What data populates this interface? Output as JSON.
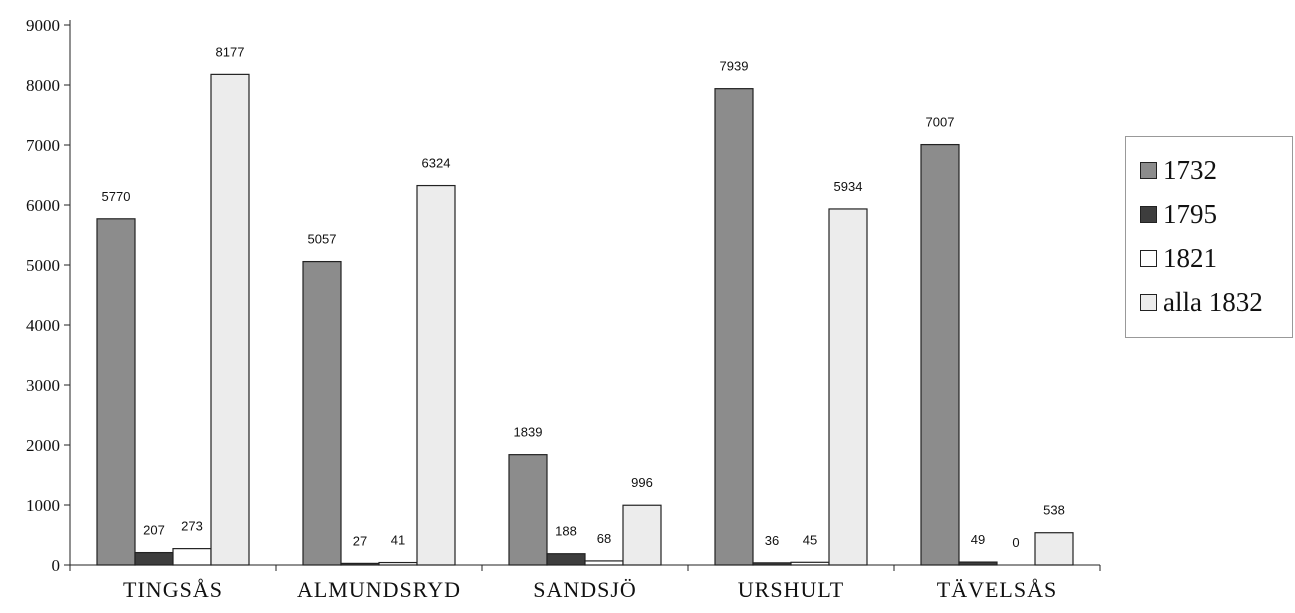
{
  "chart_data": {
    "type": "bar",
    "title": "",
    "xlabel": "",
    "ylabel": "",
    "ylim": [
      0,
      9000
    ],
    "yticks": [
      0,
      1000,
      2000,
      3000,
      4000,
      5000,
      6000,
      7000,
      8000,
      9000
    ],
    "grid": false,
    "legend_position": "right",
    "categories": [
      "TINGSÅS",
      "ALMUNDSRYD",
      "SANDSJÖ",
      "URSHULT",
      "TÄVELSÅS"
    ],
    "series": [
      {
        "name": "1732",
        "color": "#8c8c8c",
        "values": [
          5770,
          5057,
          1839,
          7939,
          7007
        ]
      },
      {
        "name": "1795",
        "color": "#3d3d3d",
        "values": [
          207,
          27,
          188,
          36,
          49
        ]
      },
      {
        "name": "1821",
        "color": "#ffffff",
        "values": [
          273,
          41,
          68,
          45,
          0
        ]
      },
      {
        "name": "alla 1832",
        "color": "#ececec",
        "values": [
          8177,
          6324,
          996,
          5934,
          538
        ]
      }
    ],
    "data_labels": [
      [
        "5770",
        "5057",
        "1839",
        "7939",
        "7007"
      ],
      [
        "207",
        "27",
        "188",
        "36",
        "49"
      ],
      [
        "273",
        "41",
        "68",
        "45",
        "0"
      ],
      [
        "8177",
        "6324",
        "996",
        "5934",
        "538"
      ]
    ]
  }
}
